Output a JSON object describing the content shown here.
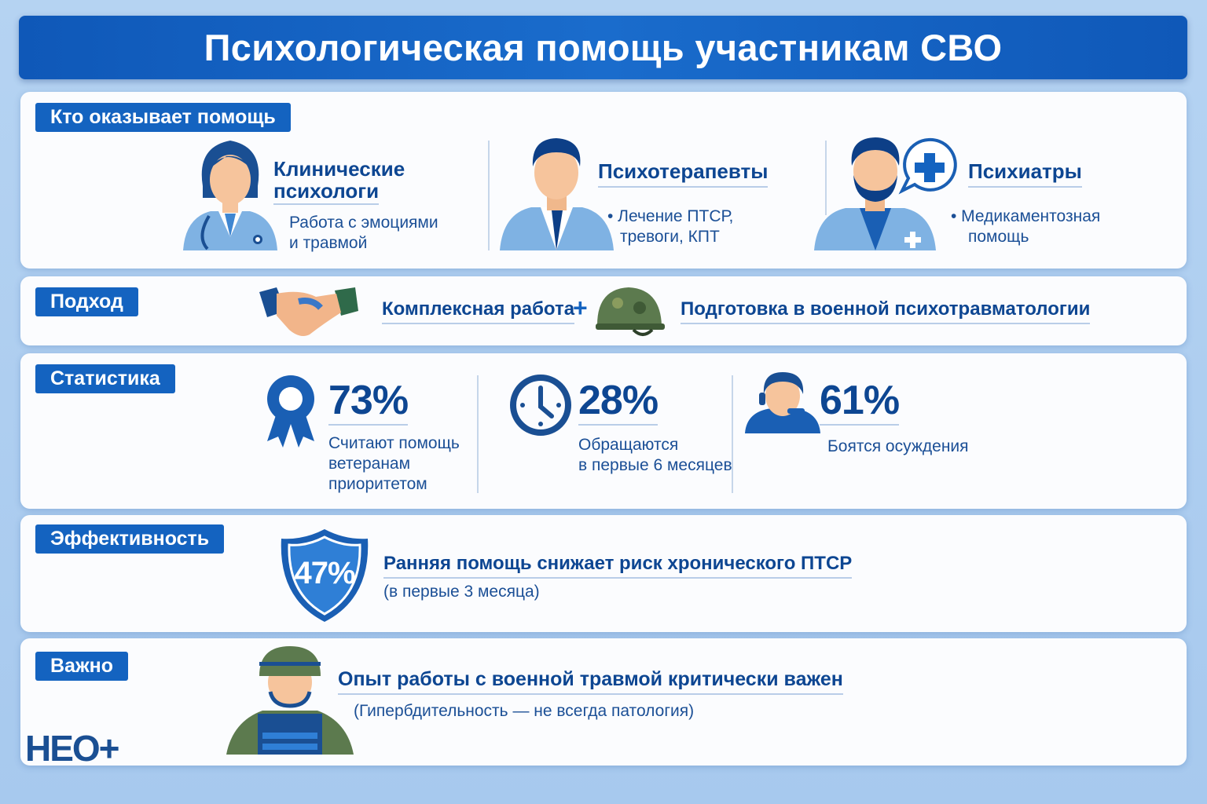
{
  "title": "Психологическая помощь участникам СВО",
  "who": {
    "tag": "Кто оказывает помощь",
    "items": [
      {
        "title_l1": "Клинические",
        "title_l2": "психологи",
        "desc_l1": "Работа с эмоциями",
        "desc_l2": "и травмой",
        "icon": "female-doctor-icon"
      },
      {
        "title": "Психотерапевты",
        "desc_l1": "• Лечение ПТСР,",
        "desc_l2": "тревоги, КПТ",
        "icon": "male-doctor-icon"
      },
      {
        "title": "Психиатры",
        "desc_l1": "• Медикаментозная",
        "desc_l2": "помощь",
        "icon": "bearded-doctor-with-cross-icon"
      }
    ]
  },
  "approach": {
    "tag": "Подход",
    "item1": "Комплексная работа",
    "plus": "+",
    "item2": "Подготовка в военной психотравматологии"
  },
  "stats": {
    "tag": "Статистика",
    "items": [
      {
        "value": "73%",
        "l1": "Считают помощь",
        "l2": "ветеранам",
        "l3": "приоритетом",
        "icon": "award-ribbon-icon"
      },
      {
        "value": "28%",
        "l1": "Обращаются",
        "l2": "в первые 6 месяцев",
        "icon": "clock-icon"
      },
      {
        "value": "61%",
        "l1": "Боятся осуждения",
        "icon": "person-headset-icon"
      }
    ]
  },
  "efficiency": {
    "tag": "Эффективность",
    "value": "47%",
    "title": "Ранняя помощь снижает риск хронического ПТСР",
    "sub": "(в первые 3 месяца)",
    "icon": "shield-icon"
  },
  "important": {
    "tag": "Важно",
    "title": "Опыт работы с военной травмой критически важен",
    "sub": "(Гипербдительность — не всегда патология)",
    "icon": "soldier-icon"
  },
  "logo": "НЕО+",
  "colors": {
    "primary": "#1463c0",
    "dark": "#0d4692",
    "background": "#a9cbee"
  }
}
